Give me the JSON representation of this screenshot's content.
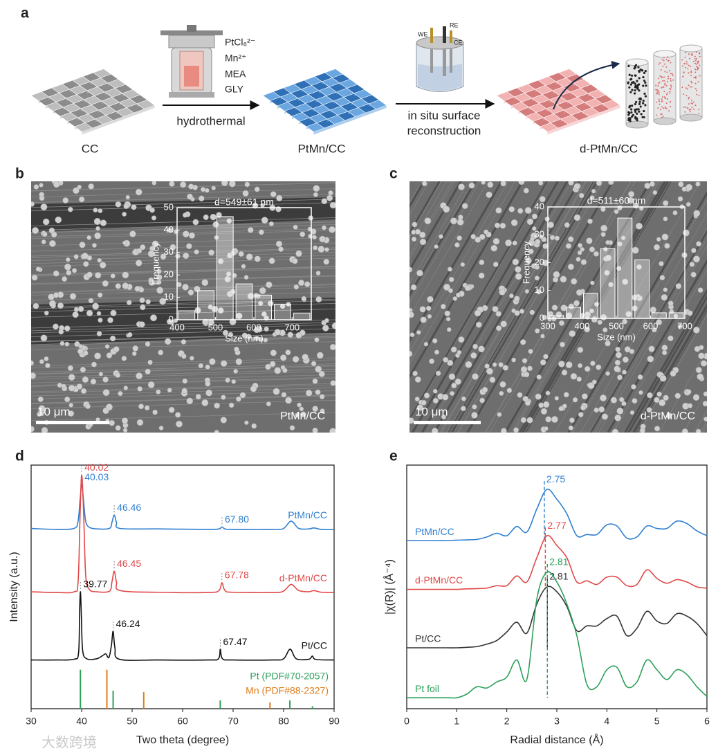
{
  "panel_a": {
    "label": "a",
    "precursors": [
      "PtCl₆²⁻",
      "Mn²⁺",
      "MEA",
      "GLY"
    ],
    "step1": "hydrothermal",
    "step2": [
      "in situ surface",
      "reconstruction"
    ],
    "materials": [
      "CC",
      "PtMn/CC",
      "d-PtMn/CC"
    ],
    "electrodes": [
      "WE",
      "RE",
      "CE"
    ]
  },
  "watermark": "大数跨境",
  "chart_data": [
    {
      "type": "histogram",
      "panel_label": "b",
      "scale_bar": "10 μm",
      "sample": "PtMn/CC",
      "title": "d=549±61 nm",
      "xlabel": "Size (nm)",
      "ylabel": "Frequency",
      "bins": [
        400,
        450,
        500,
        550,
        600,
        650,
        700,
        750
      ],
      "values": [
        4,
        13,
        46,
        16,
        11,
        7,
        3
      ],
      "xlim": [
        400,
        750
      ],
      "xticks": [
        400,
        500,
        600,
        700
      ],
      "ylim": [
        0,
        50
      ],
      "yticks": [
        0,
        10,
        20,
        30,
        40,
        50
      ],
      "color": "#ffffff"
    },
    {
      "type": "histogram",
      "panel_label": "c",
      "scale_bar": "10 μm",
      "sample": "d-PtMn/CC",
      "title": "d=511±60 nm",
      "xlabel": "Size (nm)",
      "ylabel": "Frequency",
      "bins": [
        300,
        350,
        400,
        450,
        500,
        550,
        600,
        650,
        700
      ],
      "values": [
        1,
        4,
        9,
        25,
        36,
        21,
        2,
        2
      ],
      "xlim": [
        300,
        700
      ],
      "xticks": [
        300,
        400,
        500,
        600,
        700
      ],
      "ylim": [
        0,
        40
      ],
      "yticks": [
        0,
        10,
        20,
        30,
        40
      ],
      "color": "#ffffff"
    },
    {
      "type": "line",
      "panel_label": "d",
      "xlabel": "Two theta (degree)",
      "ylabel": "Intensity (a.u.)",
      "xlim": [
        30,
        90
      ],
      "xticks": [
        30,
        40,
        50,
        60,
        70,
        80,
        90
      ],
      "ylim": [
        0,
        100
      ],
      "legend": "right",
      "series": [
        {
          "name": "PtMn/CC",
          "color": "#2f7fd1",
          "x": [
            30,
            35,
            38.5,
            39.3,
            39.7,
            40.03,
            40.4,
            40.8,
            41.5,
            43,
            45.5,
            46.0,
            46.46,
            46.9,
            47.6,
            55,
            65,
            67.2,
            67.8,
            68.4,
            70,
            78,
            80,
            81.5,
            83,
            85,
            86,
            87.5,
            90
          ],
          "values": [
            74,
            73.6,
            74,
            77,
            86,
            92,
            85,
            77,
            74.5,
            73.8,
            74,
            76.5,
            79.5,
            76.5,
            74,
            73.8,
            73.6,
            73.8,
            74.6,
            73.8,
            73.6,
            73.6,
            74,
            77,
            74,
            73.8,
            74.2,
            73.6,
            73.5
          ],
          "peaks": [
            40.03,
            46.46,
            {
              "value": 67.8,
              "label": "67.80"
            }
          ]
        },
        {
          "name": "d-PtMn/CC",
          "color": "#e04848",
          "x": [
            30,
            35,
            38.5,
            39.3,
            39.7,
            40.02,
            40.4,
            40.8,
            41.5,
            43,
            45.5,
            46.0,
            46.45,
            46.9,
            47.6,
            55,
            65,
            67.2,
            67.78,
            68.4,
            70,
            78,
            80,
            81.5,
            83,
            85,
            86,
            87.5,
            90
          ],
          "values": [
            48,
            47.7,
            48,
            52,
            80,
            96,
            80,
            55,
            49,
            48,
            48.2,
            52,
            56.5,
            52,
            48.5,
            47.8,
            47.7,
            48.5,
            51.7,
            48.5,
            47.8,
            47.7,
            48.3,
            51,
            48.5,
            48,
            48.5,
            47.8,
            47.7
          ],
          "peaks": [
            40.02,
            46.45,
            67.78
          ]
        },
        {
          "name": "Pt/CC",
          "color": "#111111",
          "x": [
            30,
            35,
            38.5,
            39.4,
            39.6,
            39.77,
            39.95,
            40.2,
            41,
            43,
            44.3,
            44.8,
            45.4,
            45.9,
            46.24,
            46.6,
            47.5,
            55,
            65,
            67.1,
            67.47,
            67.9,
            70,
            78,
            80,
            81.3,
            82.5,
            85,
            85.7,
            86.4,
            90
          ],
          "values": [
            20,
            20,
            20.3,
            23,
            40,
            48,
            38,
            24,
            20.5,
            20.5,
            22,
            22.5,
            21,
            26,
            31.8,
            25,
            20.3,
            20,
            20,
            20.5,
            24.4,
            20.5,
            20,
            20,
            20.5,
            24.4,
            20.5,
            20.3,
            21.6,
            20.2,
            20
          ],
          "peaks": [
            39.77,
            46.24,
            67.47
          ]
        },
        {
          "name": "Pt (PDF#70-2057)",
          "color": "#2ca05a",
          "style": "stick",
          "x": [
            39.76,
            46.24,
            67.45,
            81.24,
            85.71
          ],
          "values": [
            16,
            7.4,
            3.4,
            3.4,
            1
          ]
        },
        {
          "name": "Mn (PDF#88-2327)",
          "color": "#e07b18",
          "style": "stick",
          "x": [
            45,
            52.3,
            77.3
          ],
          "values": [
            16,
            6.8,
            2.6
          ]
        }
      ]
    },
    {
      "type": "line",
      "panel_label": "e",
      "xlabel": "Radial distance (Å)",
      "ylabel": "|χ(R)| (Å⁻⁴)",
      "xlim": [
        0,
        6
      ],
      "xticks": [
        0,
        1,
        2,
        3,
        4,
        5,
        6
      ],
      "ylim": [
        0,
        100
      ],
      "legend": "left",
      "x": [
        0,
        0.2,
        0.4,
        0.6,
        0.8,
        1.0,
        1.2,
        1.4,
        1.6,
        1.8,
        2.0,
        2.2,
        2.4,
        2.6,
        2.8,
        3.0,
        3.2,
        3.4,
        3.6,
        3.8,
        4.0,
        4.2,
        4.4,
        4.6,
        4.8,
        5.0,
        5.2,
        5.4,
        5.6,
        5.8,
        6.0
      ],
      "series": [
        {
          "name": "PtMn/CC",
          "color": "#2f7fd1",
          "peak": 2.75,
          "values": [
            69,
            69,
            69,
            69,
            69,
            69.2,
            69.3,
            69.5,
            70.5,
            72,
            71,
            74.8,
            72.5,
            82,
            90,
            86,
            80,
            71,
            71.5,
            71.5,
            75.5,
            75,
            70,
            70.5,
            75,
            74,
            74,
            77,
            76,
            73,
            71
          ]
        },
        {
          "name": "d-PtMn/CC",
          "color": "#e04848",
          "peak": 2.77,
          "values": [
            49,
            49,
            49,
            49,
            49,
            49,
            49.2,
            49.3,
            49.5,
            50.5,
            50.5,
            54.5,
            52,
            62,
            71,
            67,
            62,
            52,
            52.5,
            51,
            54,
            54,
            50.5,
            51,
            57,
            53.5,
            51.5,
            53,
            52,
            50,
            49.5
          ]
        },
        {
          "name": "Pt/CC",
          "color": "#333333",
          "peak": 2.81,
          "values": [
            25,
            25,
            25,
            25,
            25,
            25,
            25.2,
            25.5,
            26.5,
            28,
            31.5,
            35.5,
            31,
            43,
            50,
            48,
            42,
            32,
            34,
            34,
            37,
            38,
            30,
            33,
            40,
            36,
            35,
            39,
            38,
            35,
            30
          ]
        },
        {
          "name": "Pt foil",
          "color": "#2ca05a",
          "peak": 2.81,
          "values": [
            4.5,
            4.5,
            4.5,
            4.5,
            4.5,
            4.5,
            6,
            9,
            8.5,
            11,
            13,
            20,
            12,
            45,
            56,
            52,
            43,
            30,
            10,
            9,
            16,
            17,
            9,
            11,
            20,
            16,
            12,
            16,
            14,
            9,
            5
          ]
        }
      ]
    }
  ]
}
